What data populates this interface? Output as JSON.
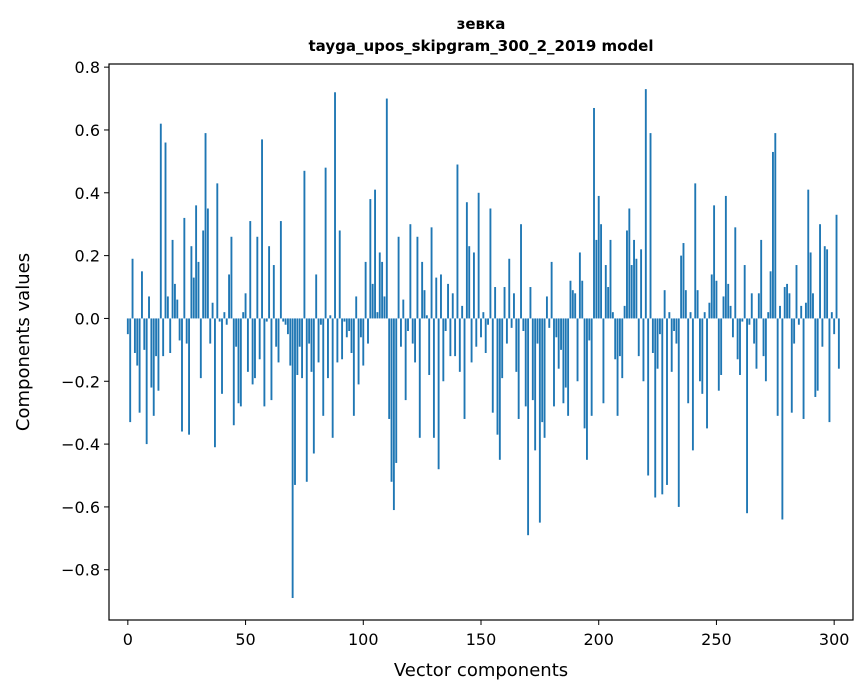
{
  "chart_data": {
    "type": "bar",
    "title": "зевка",
    "subtitle": "tayga_upos_skipgram_300_2_2019 model",
    "xlabel": "Vector components",
    "ylabel": "Components values",
    "xlim": [
      -8,
      308
    ],
    "ylim": [
      -0.96,
      0.81
    ],
    "x_ticks": [
      0,
      50,
      100,
      150,
      200,
      250,
      300
    ],
    "x_tick_labels": [
      "0",
      "50",
      "100",
      "150",
      "200",
      "250",
      "300"
    ],
    "y_ticks": [
      -0.8,
      -0.6,
      -0.4,
      -0.2,
      0.0,
      0.2,
      0.4,
      0.6,
      0.8
    ],
    "y_tick_labels": [
      "−0.8",
      "−0.6",
      "−0.4",
      "−0.2",
      "0.0",
      "0.2",
      "0.4",
      "0.6",
      "0.8"
    ],
    "bar_color": "#1f77b4",
    "grid": false,
    "series": [
      {
        "name": "зевка",
        "values": [
          -0.05,
          -0.33,
          0.19,
          -0.11,
          -0.15,
          -0.3,
          0.15,
          -0.1,
          -0.4,
          0.07,
          -0.22,
          -0.31,
          -0.12,
          -0.23,
          0.62,
          -0.12,
          0.56,
          0.07,
          -0.11,
          0.25,
          0.11,
          0.06,
          -0.07,
          -0.36,
          0.32,
          -0.08,
          -0.37,
          0.23,
          0.13,
          0.36,
          0.18,
          -0.19,
          0.28,
          0.59,
          0.35,
          -0.08,
          0.05,
          -0.41,
          0.43,
          -0.01,
          -0.24,
          0.02,
          -0.02,
          0.14,
          0.26,
          -0.34,
          -0.09,
          -0.27,
          -0.28,
          0.02,
          0.08,
          -0.17,
          0.31,
          -0.21,
          -0.19,
          0.26,
          -0.13,
          0.57,
          -0.28,
          -0.01,
          0.23,
          -0.26,
          0.17,
          -0.09,
          -0.14,
          0.31,
          -0.01,
          -0.02,
          -0.05,
          -0.15,
          -0.89,
          -0.53,
          -0.18,
          -0.09,
          -0.19,
          0.47,
          -0.52,
          -0.08,
          -0.17,
          -0.43,
          0.14,
          -0.14,
          -0.02,
          -0.31,
          0.48,
          -0.19,
          0.01,
          -0.38,
          0.72,
          -0.14,
          0.28,
          -0.13,
          -0.01,
          -0.06,
          -0.04,
          -0.11,
          -0.31,
          0.07,
          -0.21,
          -0.06,
          -0.15,
          0.18,
          -0.08,
          0.38,
          0.11,
          0.41,
          0.02,
          0.21,
          0.18,
          0.07,
          0.7,
          -0.32,
          -0.52,
          -0.61,
          -0.46,
          0.26,
          -0.09,
          0.06,
          -0.26,
          -0.04,
          0.3,
          -0.08,
          -0.14,
          0.26,
          -0.38,
          0.18,
          0.09,
          0.01,
          -0.18,
          0.29,
          -0.38,
          0.13,
          -0.48,
          0.14,
          -0.2,
          -0.04,
          0.11,
          -0.12,
          0.08,
          -0.12,
          0.49,
          -0.17,
          0.04,
          -0.32,
          0.37,
          0.23,
          -0.14,
          0.21,
          -0.09,
          0.4,
          -0.06,
          0.02,
          -0.11,
          -0.02,
          0.35,
          -0.3,
          0.1,
          -0.37,
          -0.45,
          -0.19,
          0.1,
          -0.08,
          0.19,
          -0.03,
          0.08,
          -0.17,
          -0.32,
          0.3,
          -0.04,
          -0.28,
          -0.69,
          0.1,
          -0.26,
          -0.42,
          -0.08,
          -0.65,
          -0.33,
          -0.38,
          0.07,
          -0.03,
          0.18,
          -0.28,
          -0.06,
          -0.16,
          -0.1,
          -0.27,
          -0.22,
          -0.31,
          0.12,
          0.09,
          0.08,
          -0.2,
          0.21,
          0.12,
          -0.35,
          -0.45,
          -0.07,
          -0.31,
          0.67,
          0.25,
          0.39,
          0.3,
          -0.27,
          0.17,
          0.1,
          0.25,
          0.02,
          -0.13,
          -0.31,
          -0.12,
          -0.19,
          0.04,
          0.28,
          0.35,
          0.17,
          0.25,
          0.19,
          -0.12,
          0.22,
          -0.2,
          0.73,
          -0.5,
          0.59,
          -0.11,
          -0.57,
          -0.16,
          -0.05,
          -0.56,
          0.09,
          -0.53,
          0.02,
          -0.17,
          -0.04,
          -0.08,
          -0.6,
          0.2,
          0.24,
          0.09,
          -0.27,
          0.02,
          -0.42,
          0.43,
          0.09,
          -0.2,
          -0.24,
          0.02,
          -0.35,
          0.05,
          0.14,
          0.36,
          0.12,
          -0.23,
          -0.18,
          0.07,
          0.39,
          0.11,
          0.04,
          -0.06,
          0.29,
          -0.13,
          -0.18,
          -0.01,
          0.17,
          -0.62,
          -0.02,
          0.08,
          -0.08,
          -0.16,
          0.08,
          0.25,
          -0.12,
          -0.2,
          0.02,
          0.15,
          0.53,
          0.59,
          -0.31,
          0.04,
          -0.64,
          0.1,
          0.11,
          0.08,
          -0.3,
          -0.08,
          0.17,
          -0.02,
          0.04,
          -0.32,
          0.05,
          0.41,
          0.21,
          0.08,
          -0.25,
          -0.23,
          0.3,
          -0.09,
          0.23,
          0.22,
          -0.33,
          0.02,
          -0.05,
          0.33,
          -0.16
        ]
      }
    ]
  }
}
